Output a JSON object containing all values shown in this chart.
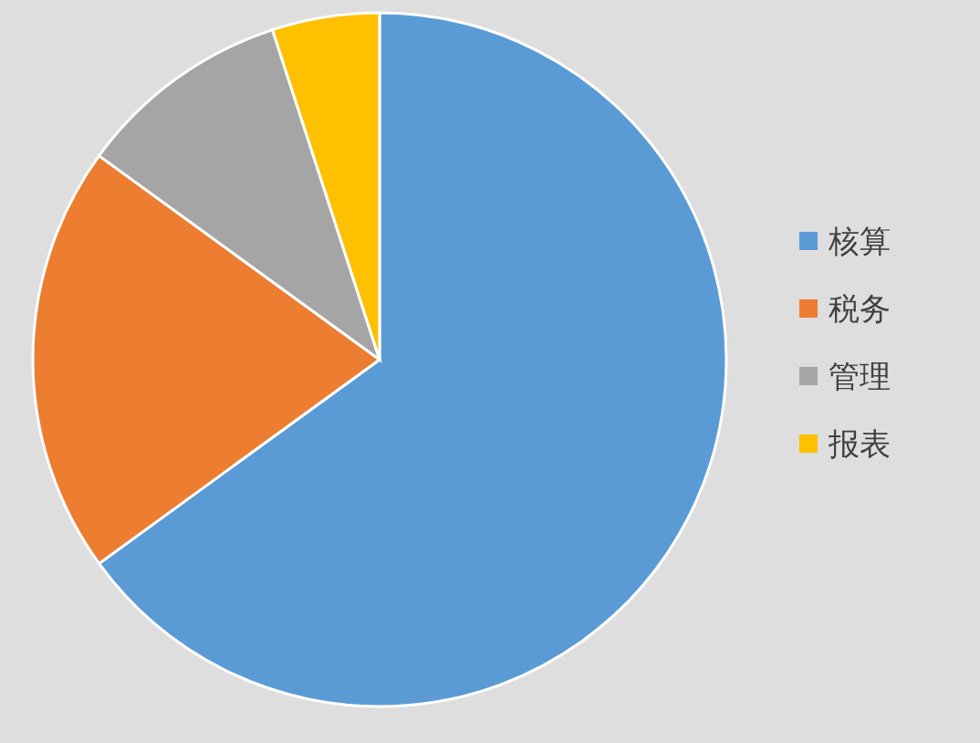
{
  "chart_data": {
    "type": "pie",
    "categories": [
      "核算",
      "税务",
      "管理",
      "报表"
    ],
    "values": [
      65,
      20,
      10,
      5
    ],
    "colors": [
      "#5b9bd5",
      "#ed7d31",
      "#a5a5a5",
      "#ffc000"
    ],
    "legend": "right"
  }
}
